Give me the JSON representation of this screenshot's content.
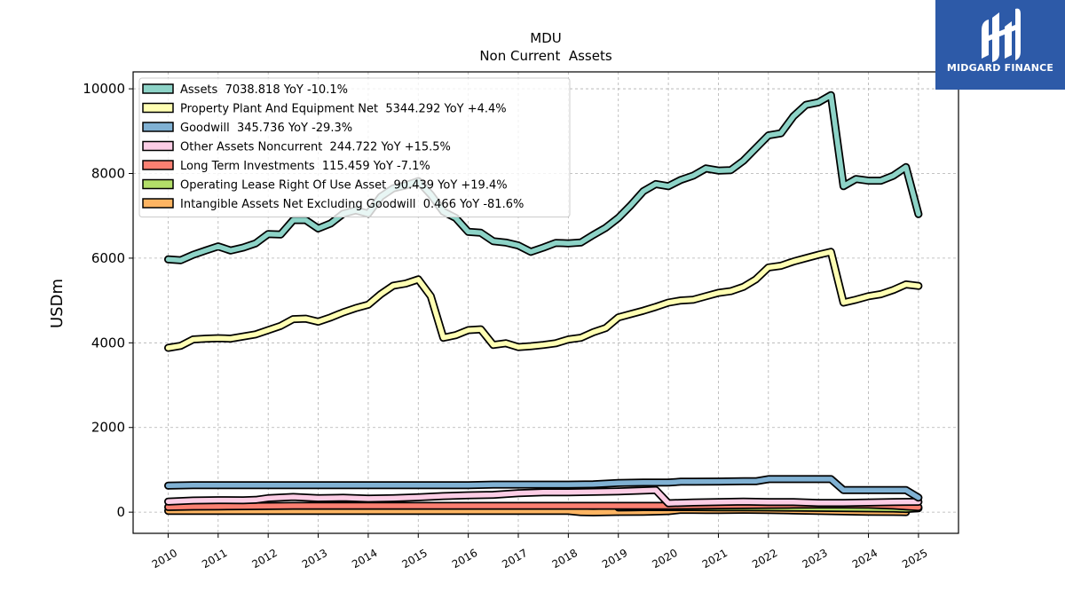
{
  "chart_data": {
    "type": "line",
    "title": "MDU",
    "subtitle": "Non Current  Assets",
    "ylabel": "USDm",
    "xlabel": "",
    "ylim": [
      -500,
      10400
    ],
    "xlim": [
      2009.3,
      2025.8
    ],
    "yticks": [
      0,
      2000,
      4000,
      6000,
      8000,
      10000
    ],
    "ytick_labels": [
      "0",
      "2000",
      "4000",
      "6000",
      "8000",
      "10000"
    ],
    "xticks": [
      2010,
      2011,
      2012,
      2013,
      2014,
      2015,
      2016,
      2017,
      2018,
      2019,
      2020,
      2021,
      2022,
      2023,
      2024,
      2025
    ],
    "xtick_labels": [
      "2010",
      "2011",
      "2012",
      "2013",
      "2014",
      "2015",
      "2016",
      "2017",
      "2018",
      "2019",
      "2020",
      "2021",
      "2022",
      "2023",
      "2024",
      "2025"
    ],
    "grid": true,
    "legend_position": "top-left",
    "series": [
      {
        "name": "Assets",
        "legend": "Assets  7038.818 YoY -10.1%",
        "color": "#8dd3c7",
        "points": [
          [
            2010.0,
            5970
          ],
          [
            2010.25,
            5950
          ],
          [
            2010.5,
            6080
          ],
          [
            2010.75,
            6180
          ],
          [
            2011.0,
            6280
          ],
          [
            2011.25,
            6180
          ],
          [
            2011.5,
            6250
          ],
          [
            2011.75,
            6350
          ],
          [
            2012.0,
            6570
          ],
          [
            2012.25,
            6560
          ],
          [
            2012.5,
            6900
          ],
          [
            2012.75,
            6900
          ],
          [
            2013.0,
            6700
          ],
          [
            2013.25,
            6820
          ],
          [
            2013.5,
            7050
          ],
          [
            2013.75,
            7130
          ],
          [
            2014.0,
            7050
          ],
          [
            2014.25,
            7450
          ],
          [
            2014.5,
            7650
          ],
          [
            2014.75,
            7720
          ],
          [
            2015.0,
            7820
          ],
          [
            2015.25,
            7500
          ],
          [
            2015.5,
            7100
          ],
          [
            2015.75,
            6950
          ],
          [
            2016.0,
            6620
          ],
          [
            2016.25,
            6600
          ],
          [
            2016.5,
            6400
          ],
          [
            2016.75,
            6370
          ],
          [
            2017.0,
            6300
          ],
          [
            2017.25,
            6150
          ],
          [
            2017.5,
            6250
          ],
          [
            2017.75,
            6360
          ],
          [
            2018.0,
            6350
          ],
          [
            2018.25,
            6370
          ],
          [
            2018.5,
            6550
          ],
          [
            2018.75,
            6720
          ],
          [
            2019.0,
            6950
          ],
          [
            2019.25,
            7250
          ],
          [
            2019.5,
            7580
          ],
          [
            2019.75,
            7750
          ],
          [
            2020.0,
            7700
          ],
          [
            2020.25,
            7850
          ],
          [
            2020.5,
            7950
          ],
          [
            2020.75,
            8120
          ],
          [
            2021.0,
            8070
          ],
          [
            2021.25,
            8080
          ],
          [
            2021.5,
            8300
          ],
          [
            2021.75,
            8600
          ],
          [
            2022.0,
            8900
          ],
          [
            2022.25,
            8950
          ],
          [
            2022.5,
            9350
          ],
          [
            2022.75,
            9620
          ],
          [
            2023.0,
            9680
          ],
          [
            2023.25,
            9850
          ],
          [
            2023.5,
            7700
          ],
          [
            2023.75,
            7870
          ],
          [
            2024.0,
            7830
          ],
          [
            2024.25,
            7830
          ],
          [
            2024.5,
            7950
          ],
          [
            2024.75,
            8150
          ],
          [
            2025.0,
            7038.818
          ]
        ]
      },
      {
        "name": "Property Plant And Equipment Net",
        "legend": "Property Plant And Equipment Net  5344.292 YoY +4.4%",
        "color": "#ffffb3",
        "points": [
          [
            2010.0,
            3880
          ],
          [
            2010.25,
            3930
          ],
          [
            2010.5,
            4080
          ],
          [
            2010.75,
            4100
          ],
          [
            2011.0,
            4110
          ],
          [
            2011.25,
            4100
          ],
          [
            2011.5,
            4150
          ],
          [
            2011.75,
            4200
          ],
          [
            2012.0,
            4300
          ],
          [
            2012.25,
            4400
          ],
          [
            2012.5,
            4560
          ],
          [
            2012.75,
            4570
          ],
          [
            2013.0,
            4500
          ],
          [
            2013.25,
            4600
          ],
          [
            2013.5,
            4720
          ],
          [
            2013.75,
            4820
          ],
          [
            2014.0,
            4900
          ],
          [
            2014.25,
            5150
          ],
          [
            2014.5,
            5350
          ],
          [
            2014.75,
            5400
          ],
          [
            2015.0,
            5500
          ],
          [
            2015.25,
            5100
          ],
          [
            2015.5,
            4120
          ],
          [
            2015.75,
            4180
          ],
          [
            2016.0,
            4300
          ],
          [
            2016.25,
            4320
          ],
          [
            2016.5,
            3950
          ],
          [
            2016.75,
            3990
          ],
          [
            2017.0,
            3900
          ],
          [
            2017.25,
            3920
          ],
          [
            2017.5,
            3950
          ],
          [
            2017.75,
            3990
          ],
          [
            2018.0,
            4080
          ],
          [
            2018.25,
            4120
          ],
          [
            2018.5,
            4250
          ],
          [
            2018.75,
            4350
          ],
          [
            2019.0,
            4600
          ],
          [
            2019.25,
            4680
          ],
          [
            2019.5,
            4760
          ],
          [
            2019.75,
            4850
          ],
          [
            2020.0,
            4950
          ],
          [
            2020.25,
            5000
          ],
          [
            2020.5,
            5020
          ],
          [
            2020.75,
            5100
          ],
          [
            2021.0,
            5180
          ],
          [
            2021.25,
            5220
          ],
          [
            2021.5,
            5320
          ],
          [
            2021.75,
            5500
          ],
          [
            2022.0,
            5780
          ],
          [
            2022.25,
            5820
          ],
          [
            2022.5,
            5920
          ],
          [
            2022.75,
            6000
          ],
          [
            2023.0,
            6080
          ],
          [
            2023.25,
            6150
          ],
          [
            2023.5,
            4950
          ],
          [
            2023.75,
            5020
          ],
          [
            2024.0,
            5100
          ],
          [
            2024.25,
            5150
          ],
          [
            2024.5,
            5250
          ],
          [
            2024.75,
            5380
          ],
          [
            2025.0,
            5344.292
          ]
        ]
      },
      {
        "name": "Goodwill",
        "legend": "Goodwill  345.736 YoY -29.3%",
        "color": "#80b1d3",
        "points": [
          [
            2010.0,
            625
          ],
          [
            2010.5,
            636
          ],
          [
            2011.0,
            636
          ],
          [
            2012.0,
            636
          ],
          [
            2013.0,
            636
          ],
          [
            2014.0,
            636
          ],
          [
            2015.0,
            636
          ],
          [
            2015.5,
            636
          ],
          [
            2016.0,
            636
          ],
          [
            2016.5,
            650
          ],
          [
            2017.0,
            650
          ],
          [
            2017.5,
            650
          ],
          [
            2018.0,
            650
          ],
          [
            2018.5,
            660
          ],
          [
            2019.0,
            690
          ],
          [
            2019.5,
            700
          ],
          [
            2020.0,
            700
          ],
          [
            2020.25,
            720
          ],
          [
            2020.5,
            720
          ],
          [
            2021.0,
            725
          ],
          [
            2021.5,
            730
          ],
          [
            2021.75,
            730
          ],
          [
            2022.0,
            780
          ],
          [
            2022.5,
            780
          ],
          [
            2023.0,
            780
          ],
          [
            2023.25,
            780
          ],
          [
            2023.5,
            520
          ],
          [
            2024.0,
            520
          ],
          [
            2024.5,
            520
          ],
          [
            2024.75,
            520
          ],
          [
            2025.0,
            345.736
          ]
        ]
      },
      {
        "name": "Other Assets Noncurrent",
        "legend": "Other Assets Noncurrent  244.722 YoY +15.5%",
        "color": "#fccde5",
        "points": [
          [
            2010.0,
            250
          ],
          [
            2010.5,
            275
          ],
          [
            2011.0,
            285
          ],
          [
            2011.5,
            280
          ],
          [
            2011.75,
            290
          ],
          [
            2012.0,
            330
          ],
          [
            2012.5,
            360
          ],
          [
            2013.0,
            330
          ],
          [
            2013.5,
            340
          ],
          [
            2014.0,
            320
          ],
          [
            2014.5,
            330
          ],
          [
            2015.0,
            350
          ],
          [
            2015.5,
            380
          ],
          [
            2016.0,
            400
          ],
          [
            2016.5,
            410
          ],
          [
            2017.0,
            450
          ],
          [
            2017.5,
            470
          ],
          [
            2018.0,
            470
          ],
          [
            2018.5,
            480
          ],
          [
            2019.0,
            490
          ],
          [
            2019.5,
            510
          ],
          [
            2019.75,
            520
          ],
          [
            2020.0,
            210
          ],
          [
            2020.5,
            230
          ],
          [
            2021.0,
            240
          ],
          [
            2021.5,
            250
          ],
          [
            2022.0,
            240
          ],
          [
            2022.5,
            240
          ],
          [
            2023.0,
            220
          ],
          [
            2023.5,
            220
          ],
          [
            2024.0,
            230
          ],
          [
            2024.5,
            240
          ],
          [
            2025.0,
            244.722
          ]
        ]
      },
      {
        "name": "Long Term Investments",
        "legend": "Long Term Investments  115.459 YoY -7.1%",
        "color": "#fb8072",
        "points": [
          [
            2010.0,
            120
          ],
          [
            2010.5,
            130
          ],
          [
            2011.0,
            135
          ],
          [
            2011.5,
            140
          ],
          [
            2012.0,
            145
          ],
          [
            2012.5,
            150
          ],
          [
            2013.0,
            150
          ],
          [
            2013.5,
            150
          ],
          [
            2014.0,
            150
          ],
          [
            2014.5,
            150
          ],
          [
            2015.0,
            150
          ],
          [
            2015.5,
            150
          ],
          [
            2016.0,
            150
          ],
          [
            2016.5,
            150
          ],
          [
            2017.0,
            150
          ],
          [
            2017.5,
            150
          ],
          [
            2018.0,
            150
          ],
          [
            2018.5,
            150
          ],
          [
            2019.0,
            150
          ],
          [
            2019.5,
            150
          ],
          [
            2020.0,
            150
          ],
          [
            2020.5,
            155
          ],
          [
            2021.0,
            160
          ],
          [
            2021.5,
            165
          ],
          [
            2022.0,
            170
          ],
          [
            2022.5,
            175
          ],
          [
            2023.0,
            180
          ],
          [
            2023.5,
            180
          ],
          [
            2024.0,
            175
          ],
          [
            2024.5,
            155
          ],
          [
            2024.75,
            135
          ],
          [
            2025.0,
            115.459
          ]
        ]
      },
      {
        "name": "Operating Lease Right Of Use Asset",
        "legend": "Operating Lease Right Of Use Asset  90.439 YoY +19.4%",
        "color": "#b3de69",
        "points": [
          [
            2019.0,
            110
          ],
          [
            2019.25,
            115
          ],
          [
            2019.5,
            118
          ],
          [
            2020.0,
            118
          ],
          [
            2020.5,
            118
          ],
          [
            2021.0,
            115
          ],
          [
            2021.5,
            115
          ],
          [
            2022.0,
            110
          ],
          [
            2022.5,
            105
          ],
          [
            2023.0,
            100
          ],
          [
            2023.5,
            95
          ],
          [
            2024.0,
            90
          ],
          [
            2024.5,
            85
          ],
          [
            2024.75,
            75
          ],
          [
            2025.0,
            90.439
          ]
        ]
      },
      {
        "name": "Intangible Assets Net Excluding Goodwill",
        "legend": "Intangible Assets Net Excluding Goodwill  0.466 YoY -81.6%",
        "color": "#fdb462",
        "points": [
          [
            2010.0,
            30
          ],
          [
            2011.0,
            30
          ],
          [
            2012.0,
            30
          ],
          [
            2013.0,
            30
          ],
          [
            2014.0,
            30
          ],
          [
            2015.0,
            30
          ],
          [
            2016.0,
            30
          ],
          [
            2017.0,
            30
          ],
          [
            2018.0,
            28
          ],
          [
            2018.25,
            0
          ],
          [
            2018.5,
            -5
          ],
          [
            2018.75,
            0
          ],
          [
            2019.0,
            5
          ],
          [
            2019.5,
            10
          ],
          [
            2020.0,
            25
          ],
          [
            2020.25,
            55
          ],
          [
            2020.75,
            50
          ],
          [
            2021.0,
            50
          ],
          [
            2021.5,
            55
          ],
          [
            2022.0,
            50
          ],
          [
            2022.5,
            40
          ],
          [
            2023.0,
            30
          ],
          [
            2023.5,
            20
          ],
          [
            2024.0,
            10
          ],
          [
            2024.5,
            5
          ],
          [
            2024.75,
            0.466
          ]
        ]
      }
    ]
  },
  "branding": {
    "logo_text": "MIDGARD FINANCE",
    "logo_color": "#2d5aa8"
  }
}
